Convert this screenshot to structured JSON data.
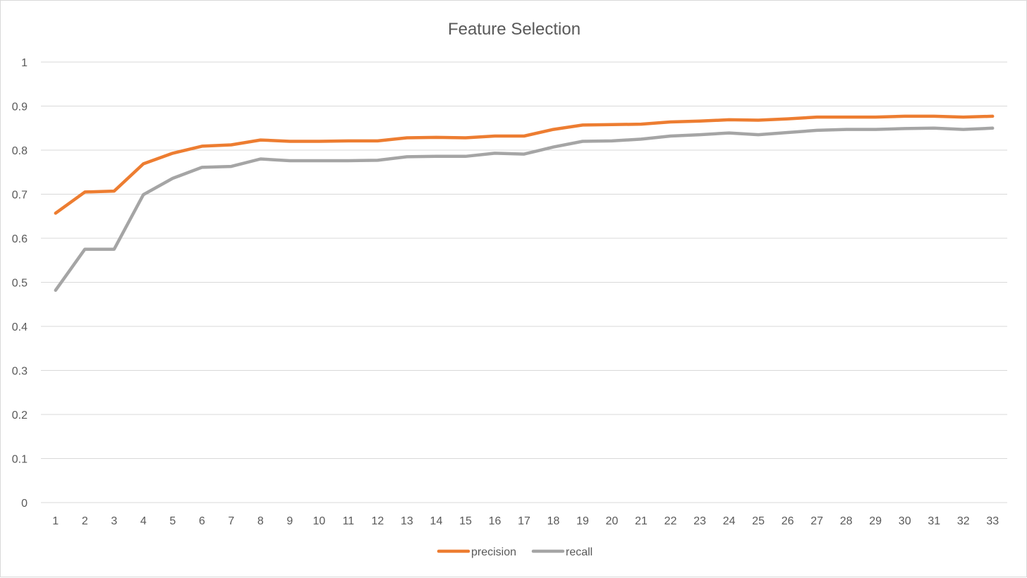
{
  "chart_data": {
    "type": "line",
    "title": "Feature Selection",
    "xlabel": "",
    "ylabel": "",
    "ylim": [
      0,
      1
    ],
    "yticks": [
      "0",
      "0.1",
      "0.2",
      "0.3",
      "0.4",
      "0.5",
      "0.6",
      "0.7",
      "0.8",
      "0.9",
      "1"
    ],
    "categories": [
      "1",
      "2",
      "3",
      "4",
      "5",
      "6",
      "7",
      "8",
      "9",
      "10",
      "11",
      "12",
      "13",
      "14",
      "15",
      "16",
      "17",
      "18",
      "19",
      "20",
      "21",
      "22",
      "23",
      "24",
      "25",
      "26",
      "27",
      "28",
      "29",
      "30",
      "31",
      "32",
      "33"
    ],
    "grid": true,
    "legend_position": "bottom",
    "series": [
      {
        "name": "precision",
        "color": "#ed7d31",
        "values": [
          0.657,
          0.705,
          0.707,
          0.769,
          0.793,
          0.809,
          0.812,
          0.823,
          0.82,
          0.82,
          0.821,
          0.821,
          0.828,
          0.829,
          0.828,
          0.832,
          0.832,
          0.847,
          0.857,
          0.858,
          0.859,
          0.864,
          0.866,
          0.869,
          0.868,
          0.871,
          0.875,
          0.875,
          0.875,
          0.877,
          0.877,
          0.875,
          0.877
        ]
      },
      {
        "name": "recall",
        "color": "#a5a5a5",
        "values": [
          0.482,
          0.575,
          0.575,
          0.699,
          0.736,
          0.761,
          0.763,
          0.78,
          0.776,
          0.776,
          0.776,
          0.777,
          0.785,
          0.786,
          0.786,
          0.793,
          0.791,
          0.807,
          0.82,
          0.821,
          0.825,
          0.832,
          0.835,
          0.839,
          0.835,
          0.84,
          0.845,
          0.847,
          0.847,
          0.849,
          0.85,
          0.847,
          0.85
        ]
      }
    ]
  }
}
